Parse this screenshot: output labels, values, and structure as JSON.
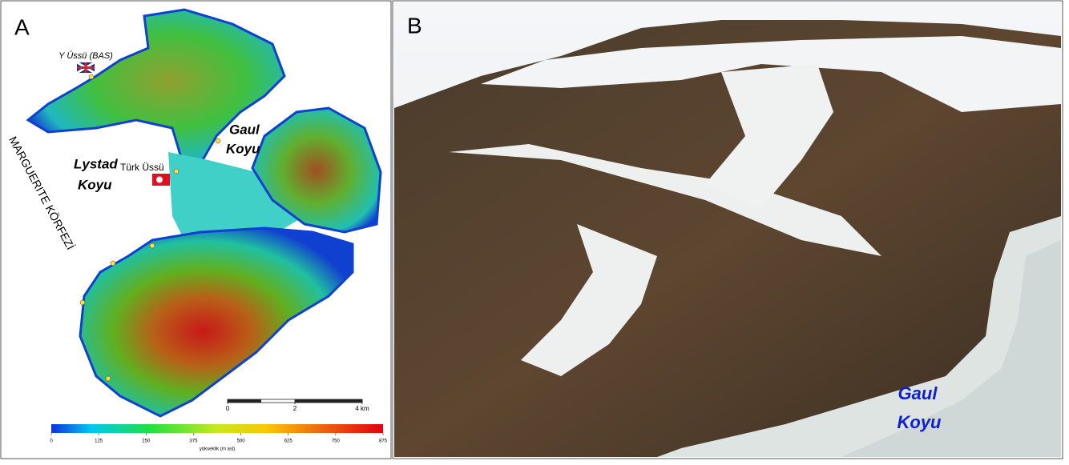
{
  "panel_a": {
    "label": "A",
    "places": {
      "base_bas": "Y Üssü (BAS)",
      "gaul_1": "Gaul",
      "gaul_2": "Koyu",
      "lystad_1": "Lystad",
      "lystad_2": "Koyu",
      "turk_base": "Türk Üssü",
      "bay": "MARGUERITE KÖRFEZİ"
    },
    "scale_bar": {
      "ticks": [
        0,
        2,
        {
          "value": 4,
          "label": "4 km"
        }
      ]
    },
    "colorbar": {
      "ticks": [
        0,
        125,
        250,
        375,
        500,
        625,
        750,
        875
      ],
      "label": "yükseklik (m asl)"
    }
  },
  "panel_b": {
    "label": "B",
    "place_1": "Gaul",
    "place_2": "Koyu"
  }
}
